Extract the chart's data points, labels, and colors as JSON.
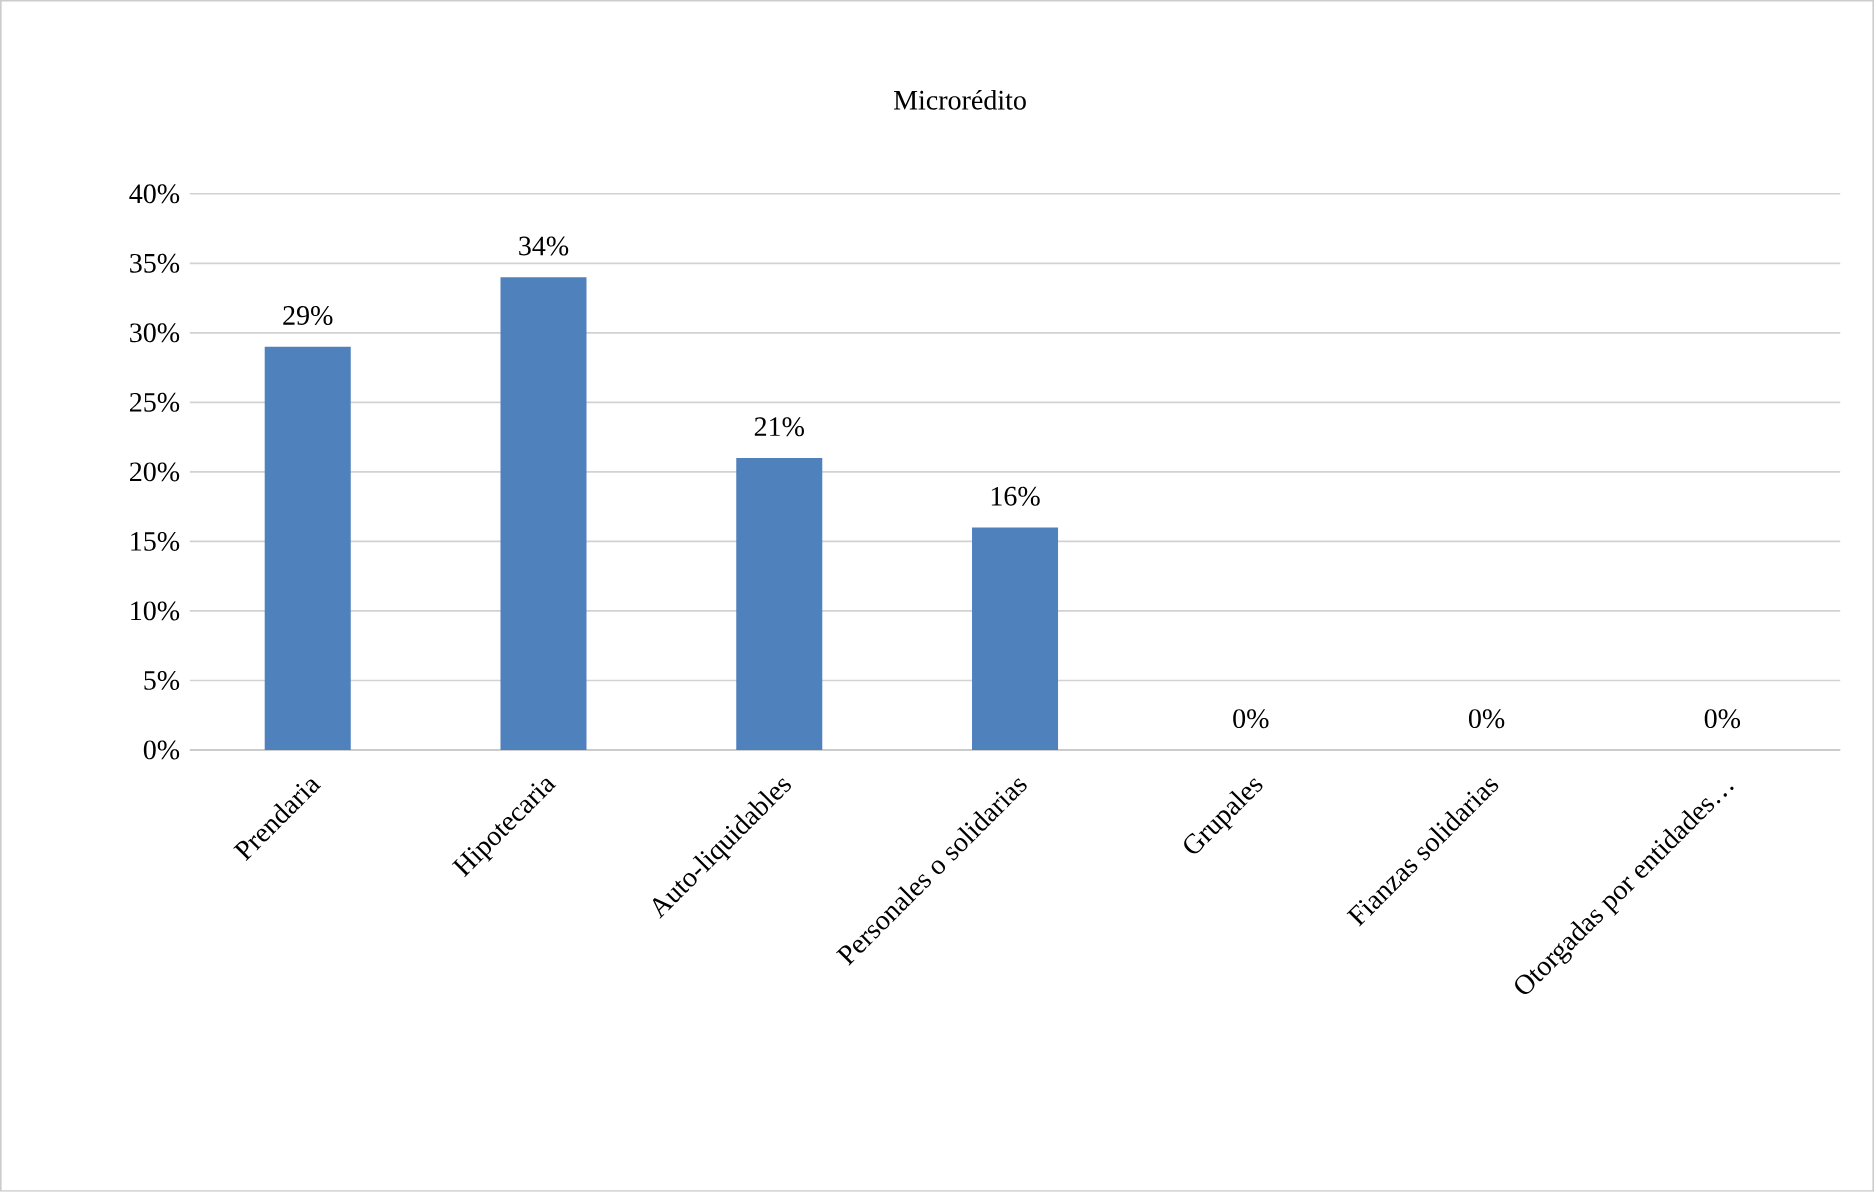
{
  "chart_data": {
    "type": "bar",
    "title": "Microrédito",
    "categories": [
      "Prendaria",
      "Hipotecaria",
      "Auto-liquidables",
      "Personales o solidarias",
      "Grupales",
      "Fianzas solidarias",
      "Otorgadas por entidades…"
    ],
    "values": [
      29,
      34,
      21,
      16,
      0,
      0,
      0
    ],
    "value_labels": [
      "29%",
      "34%",
      "21%",
      "16%",
      "0%",
      "0%",
      "0%"
    ],
    "color": "#4f81bd",
    "ylim": [
      0,
      40
    ],
    "yticks": [
      {
        "value": 0,
        "label": "0%"
      },
      {
        "value": 5,
        "label": "5%"
      },
      {
        "value": 10,
        "label": "10%"
      },
      {
        "value": 15,
        "label": "15%"
      },
      {
        "value": 20,
        "label": "20%"
      },
      {
        "value": 25,
        "label": "25%"
      },
      {
        "value": 30,
        "label": "30%"
      },
      {
        "value": 35,
        "label": "35%"
      },
      {
        "value": 40,
        "label": "40%"
      }
    ],
    "grid": "y"
  }
}
